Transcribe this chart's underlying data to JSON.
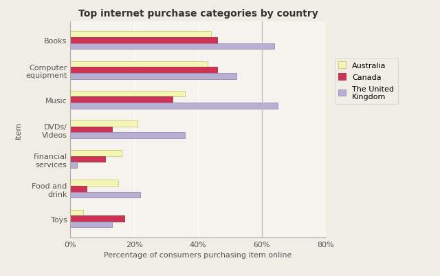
{
  "title": "Top internet purchase categories by country",
  "categories": [
    "Toys",
    "Food and\ndrink",
    "Financial\nservices",
    "DVDs/\nVideos",
    "Music",
    "Computer\nequipment",
    "Books"
  ],
  "australia": [
    4,
    15,
    16,
    21,
    36,
    43,
    44
  ],
  "canada": [
    17,
    5,
    11,
    13,
    32,
    46,
    46
  ],
  "uk": [
    13,
    22,
    2,
    36,
    65,
    52,
    64
  ],
  "colors": {
    "australia": "#f5f5b5",
    "canada": "#cc3355",
    "uk": "#b8b0d0"
  },
  "edge_colors": {
    "australia": "#c8c870",
    "canada": "#993344",
    "uk": "#9988bb"
  },
  "xlabel": "Percentage of consumers purchasing item online",
  "ylabel": "Item",
  "xlim": [
    0,
    80
  ],
  "xticks": [
    0,
    20,
    40,
    60,
    80
  ],
  "xticklabels": [
    "0%",
    "20%",
    "40%",
    "60%",
    "80%"
  ],
  "legend_labels": [
    "Australia",
    "Canada",
    "The United\nKingdom"
  ],
  "background_color": "#f0ede5",
  "plot_background": "#f5f3ee",
  "vline_x": 60,
  "bar_height": 0.2,
  "title_fontsize": 10,
  "axis_fontsize": 8,
  "tick_fontsize": 8
}
